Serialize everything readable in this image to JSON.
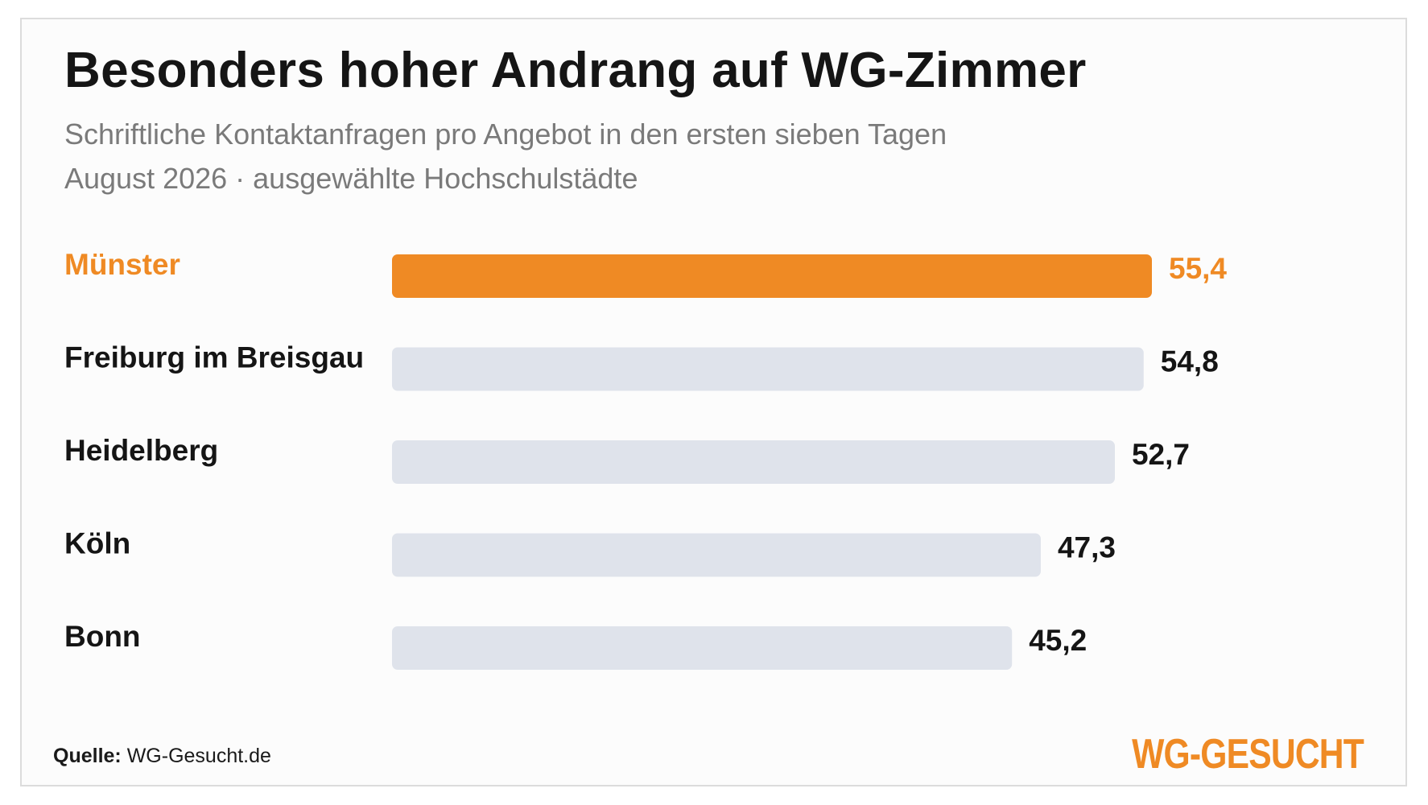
{
  "header": {
    "title": "Besonders hoher Andrang auf WG-Zimmer",
    "subtitle_line1": "Schriftliche Kontaktanfragen pro Angebot in den ersten sieben Tagen",
    "subtitle_line2": "August 2026 · ausgewählte Hochschulstädte"
  },
  "chart_data": {
    "type": "bar",
    "orientation": "horizontal",
    "categories": [
      "Münster",
      "Freiburg im Breisgau",
      "Heidelberg",
      "Köln",
      "Bonn"
    ],
    "values": [
      55.4,
      54.8,
      52.7,
      47.3,
      45.2
    ],
    "value_labels": [
      "55,4",
      "54,8",
      "52,7",
      "47,3",
      "45,2"
    ],
    "highlight": "Münster",
    "xlim": [
      0,
      55.4
    ],
    "grid": false,
    "colors": {
      "highlight": "#ef8a24",
      "default_bar": "#dfe3eb",
      "default_text": "#151515"
    }
  },
  "footer": {
    "source_label": "Quelle:",
    "source_value": "WG-Gesucht.de",
    "logo_text": "WG-GESUCHT"
  }
}
